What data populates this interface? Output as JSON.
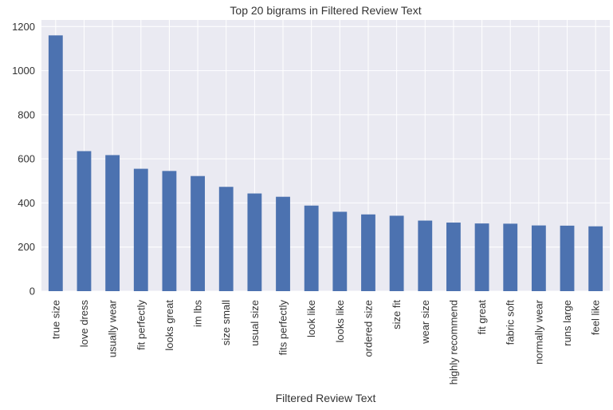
{
  "chart_data": {
    "type": "bar",
    "title": "Top 20 bigrams in Filtered Review Text",
    "xlabel": "Filtered Review Text",
    "ylabel": "",
    "categories": [
      "true size",
      "love dress",
      "usually wear",
      "fit perfectly",
      "looks great",
      "im lbs",
      "size small",
      "usual size",
      "fits perfectly",
      "look like",
      "looks like",
      "ordered size",
      "size fit",
      "wear size",
      "highly recommend",
      "fit great",
      "fabric soft",
      "normally wear",
      "runs large",
      "feel like"
    ],
    "values": [
      1160,
      635,
      617,
      555,
      545,
      522,
      473,
      443,
      428,
      388,
      360,
      348,
      342,
      320,
      311,
      307,
      306,
      298,
      297,
      294
    ],
    "ylim": [
      0,
      1230
    ],
    "yticks": [
      0,
      200,
      400,
      600,
      800,
      1000,
      1200
    ],
    "grid": true,
    "legend": "none",
    "colors": {
      "bar": "#4c72b0",
      "plot_background": "#eaeaf2",
      "grid": "#ffffff",
      "text": "#333333"
    }
  }
}
